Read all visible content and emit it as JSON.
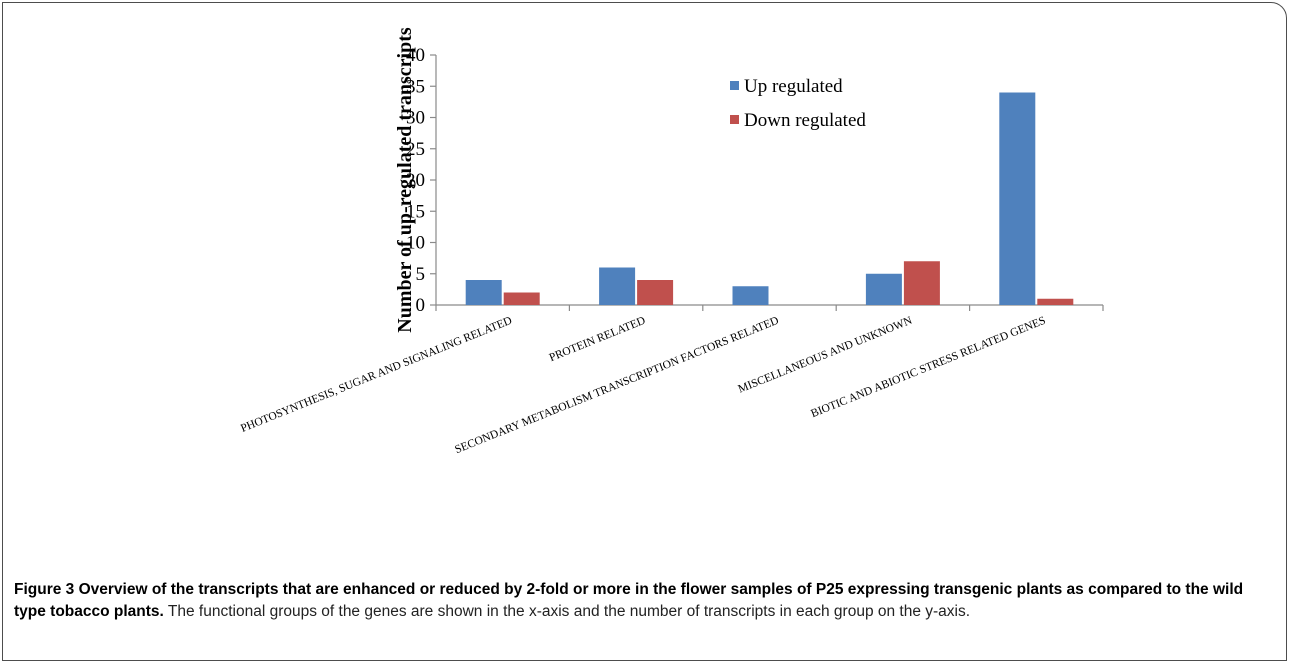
{
  "figure": {
    "caption_title": "Figure 3 Overview of the transcripts that are enhanced or reduced by 2-fold or more in the flower samples of P25 expressing transgenic plants as compared to the wild type tobacco plants.",
    "caption_text": " The functional groups of the genes are shown in the x-axis and the number of transcripts in each group on the y-axis."
  },
  "chart_data": {
    "type": "bar",
    "title": "",
    "xlabel": "",
    "ylabel": "Number of up-regulated transcripts",
    "categories": [
      "PHOTOSYNTHESIS, SUGAR AND SIGNALING RELATED",
      "PROTEIN RELATED",
      "SECONDARY METABOLISM TRANSCRIPTION FACTORS RELATED",
      "MISCELLANEOUS AND UNKNOWN",
      "BIOTIC AND ABIOTIC STRESS RELATED GENES"
    ],
    "series": [
      {
        "name": "Up regulated",
        "color": "#4f81bd",
        "values": [
          4,
          6,
          3,
          5,
          34
        ]
      },
      {
        "name": "Down regulated",
        "color": "#c0504d",
        "values": [
          2,
          4,
          0,
          7,
          1
        ]
      }
    ],
    "ylim": [
      0,
      40
    ],
    "yticks": [
      0,
      5,
      10,
      15,
      20,
      25,
      30,
      35,
      40
    ],
    "grid": false,
    "legend_position": "top-center"
  }
}
